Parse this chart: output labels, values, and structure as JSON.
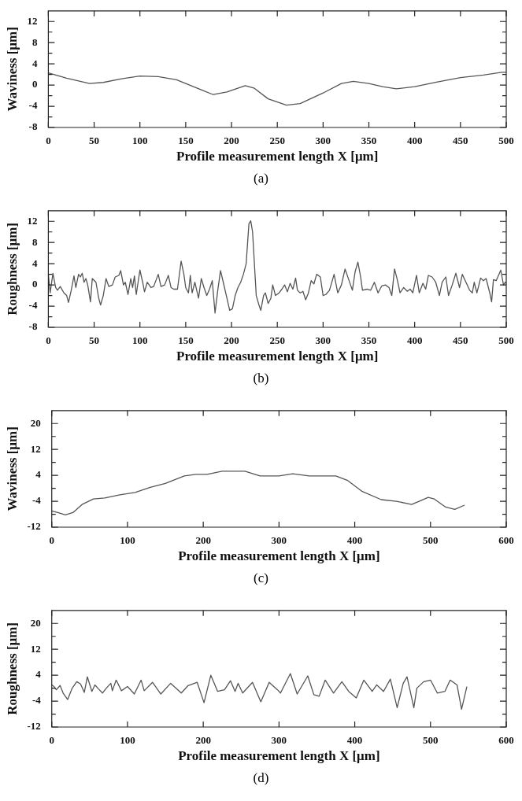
{
  "chart_data": [
    {
      "type": "line",
      "xlabel": "Profile measurement length X [μm]",
      "ylabel": "Waviness [μm]",
      "annotations": [
        "(a)"
      ],
      "color": "#555555",
      "marker": "none",
      "x": [
        0,
        20,
        45,
        60,
        80,
        100,
        120,
        140,
        160,
        180,
        195,
        215,
        225,
        240,
        260,
        275,
        300,
        320,
        333,
        350,
        365,
        380,
        400,
        425,
        450,
        475,
        495,
        500
      ],
      "values": [
        2.3,
        1.3,
        0.3,
        0.5,
        1.2,
        1.7,
        1.6,
        1.0,
        -0.4,
        -1.8,
        -1.3,
        -0.1,
        -0.6,
        -2.6,
        -3.8,
        -3.5,
        -1.5,
        0.3,
        0.7,
        0.3,
        -0.3,
        -0.7,
        -0.3,
        0.6,
        1.4,
        1.9,
        2.4,
        2.4
      ],
      "xlim": [
        0,
        500
      ],
      "xticks": [
        0,
        50,
        100,
        150,
        200,
        250,
        300,
        350,
        400,
        450,
        500
      ],
      "ylim": [
        -8,
        14
      ],
      "yticks": [
        -8,
        {
          "value": -6,
          "label": null
        },
        -4,
        {
          "value": -2,
          "label": null
        },
        0,
        {
          "value": 2,
          "label": null
        },
        4,
        {
          "value": 6,
          "label": null
        },
        8,
        {
          "value": 10,
          "label": null
        },
        12
      ]
    },
    {
      "type": "line",
      "xlabel": "Profile measurement length X [μm]",
      "ylabel": "Roughness [μm]",
      "annotations": [
        "(b)"
      ],
      "color": "#555555",
      "marker": "none",
      "x": [
        0,
        2,
        5,
        8,
        10,
        13,
        17,
        20,
        22,
        25,
        28,
        30,
        33,
        35,
        37,
        39,
        41,
        43,
        46,
        48,
        52,
        55,
        57,
        60,
        63,
        66,
        70,
        73,
        77,
        79,
        82,
        84,
        87,
        90,
        92,
        94,
        96,
        100,
        103,
        105,
        108,
        112,
        115,
        120,
        123,
        127,
        131,
        134,
        137,
        141,
        145,
        148,
        150,
        153,
        155,
        157,
        160,
        162,
        164,
        167,
        170,
        173,
        176,
        179,
        182,
        185,
        188,
        191,
        195,
        198,
        201,
        204,
        207,
        210,
        213,
        216,
        219,
        221,
        223,
        227,
        230,
        232,
        235,
        237,
        240,
        243,
        245,
        248,
        252,
        255,
        258,
        261,
        264,
        267,
        270,
        272,
        275,
        278,
        281,
        284,
        287,
        290,
        293,
        297,
        300,
        303,
        307,
        312,
        316,
        320,
        324,
        328,
        332,
        335,
        338,
        341,
        343,
        348,
        352,
        356,
        360,
        364,
        368,
        372,
        375,
        378,
        381,
        384,
        388,
        392,
        395,
        398,
        402,
        405,
        409,
        412,
        415,
        419,
        423,
        427,
        430,
        434,
        437,
        441,
        445,
        449,
        452,
        456,
        460,
        463,
        465,
        468,
        472,
        475,
        478,
        482,
        484,
        486,
        489,
        492,
        494,
        497,
        499,
        500
      ],
      "values": [
        2,
        -1.5,
        2.2,
        -0.5,
        -1,
        -0.3,
        -1.5,
        -2,
        -3.3,
        -1,
        1.7,
        -0.5,
        2,
        1.5,
        2.2,
        0.5,
        1.2,
        0,
        -3.2,
        1.2,
        0.5,
        -2.5,
        -3.8,
        -2,
        1.2,
        -0.3,
        0,
        1.5,
        1.8,
        2.7,
        0,
        0.5,
        -1.8,
        1.2,
        -0.5,
        1.7,
        -1.8,
        2.8,
        0.5,
        -1.3,
        0.5,
        -0.5,
        -0.3,
        2,
        -0.3,
        0,
        1.8,
        -0.5,
        -0.8,
        -0.8,
        4.5,
        2,
        -0.5,
        -1.5,
        1.8,
        -1.5,
        0.5,
        -1,
        -2.5,
        1.2,
        -0.5,
        -2,
        -0.8,
        0.8,
        -5.3,
        -1,
        2.7,
        0.5,
        -2.5,
        -4.8,
        -4.5,
        -2,
        -0.5,
        0.5,
        2,
        4,
        11.5,
        12.1,
        10,
        -2,
        -3.8,
        -4.8,
        -2,
        -1.5,
        -3.5,
        -2.5,
        0,
        -2,
        -1.5,
        -0.8,
        0,
        -1.3,
        0.3,
        -0.8,
        1.3,
        -1,
        -1.5,
        -1.2,
        -2.8,
        -1.5,
        0.8,
        0.2,
        2,
        1.5,
        -2,
        -1.8,
        -1,
        2,
        -1.5,
        0,
        3,
        1,
        -1,
        2.5,
        4.3,
        1.5,
        -1,
        -0.8,
        -1,
        0.5,
        -1.5,
        -0.2,
        0,
        -0.5,
        -2,
        3,
        1,
        -1.5,
        -0.5,
        -1.2,
        -0.8,
        -1.5,
        1.8,
        -1.5,
        0.3,
        -0.8,
        1.8,
        1.5,
        0.5,
        -2,
        0.5,
        1.5,
        -2,
        0,
        2.2,
        -0.5,
        2,
        0.5,
        -1,
        -1.5,
        0.5,
        -1.5,
        1.3,
        0.8,
        1.2,
        -1.5,
        -3.2,
        1,
        0.8,
        2,
        2.8,
        0,
        0.5,
        0.3
      ],
      "xlim": [
        0,
        500
      ],
      "xticks": [
        0,
        50,
        100,
        150,
        200,
        250,
        300,
        350,
        400,
        450,
        500
      ],
      "ylim": [
        -8,
        14
      ],
      "yticks": [
        -8,
        {
          "value": -6,
          "label": null
        },
        -4,
        {
          "value": -2,
          "label": null
        },
        0,
        {
          "value": 2,
          "label": null
        },
        4,
        {
          "value": 6,
          "label": null
        },
        8,
        {
          "value": 10,
          "label": null
        },
        12
      ]
    },
    {
      "type": "line",
      "xlabel": "Profile measurement length X [μm]",
      "ylabel": "Waviness [μm]",
      "annotations": [
        "(c)"
      ],
      "color": "#555555",
      "marker": "none",
      "x": [
        0,
        8,
        18,
        28,
        40,
        55,
        70,
        90,
        110,
        130,
        150,
        175,
        190,
        205,
        225,
        255,
        275,
        300,
        318,
        340,
        375,
        390,
        410,
        435,
        455,
        475,
        485,
        497,
        505,
        520,
        532,
        545
      ],
      "values": [
        -7,
        -7.5,
        -8.2,
        -7.5,
        -5,
        -3.3,
        -3,
        -2,
        -1.3,
        0.3,
        1.5,
        3.8,
        4.3,
        4.3,
        5.3,
        5.3,
        3.8,
        3.8,
        4.5,
        3.8,
        3.8,
        2.5,
        -1,
        -3.5,
        -4,
        -5,
        -4,
        -2.8,
        -3.3,
        -5.8,
        -6.5,
        -5.2
      ],
      "xlim": [
        0,
        600
      ],
      "xticks": [
        0,
        100,
        200,
        300,
        400,
        500,
        600
      ],
      "ylim": [
        -12,
        24
      ],
      "yticks": [
        -12,
        {
          "value": -8,
          "label": null
        },
        -4,
        {
          "value": 0,
          "label": null
        },
        4,
        {
          "value": 8,
          "label": null
        },
        12,
        {
          "value": 16,
          "label": null
        },
        20
      ]
    },
    {
      "type": "line",
      "xlabel": "Profile measurement length X [μm]",
      "ylabel": "Roughness [μm]",
      "annotations": [
        "(d)"
      ],
      "color": "#555555",
      "marker": "none",
      "x": [
        0,
        3,
        6,
        11,
        15,
        21,
        27,
        33,
        38,
        43,
        47,
        53,
        57,
        62,
        67,
        72,
        78,
        80,
        85,
        92,
        100,
        109,
        118,
        122,
        133,
        144,
        157,
        171,
        180,
        192,
        201,
        210,
        219,
        228,
        236,
        242,
        246,
        252,
        265,
        276,
        287,
        298,
        302,
        315,
        324,
        338,
        346,
        353,
        361,
        372,
        383,
        392,
        402,
        412,
        423,
        429,
        438,
        447,
        456,
        464,
        469,
        478,
        482,
        491,
        500,
        509,
        519,
        526,
        535,
        541,
        548
      ],
      "values": [
        1,
        0.5,
        -0.5,
        0.8,
        -1.5,
        -3.5,
        0,
        2,
        1.3,
        -1.3,
        3.5,
        -1,
        1,
        -0.3,
        -1.5,
        0,
        1.5,
        -0.8,
        2.5,
        -0.8,
        0.5,
        -1.8,
        2.5,
        -0.8,
        1.8,
        -1.8,
        1.5,
        -1.5,
        0.8,
        1.8,
        -4.5,
        4,
        -1,
        -0.5,
        2.3,
        -1,
        1.5,
        -1.5,
        1.8,
        -4.2,
        1.8,
        -0.5,
        -1.5,
        4.5,
        -1.8,
        3.8,
        -2,
        -2.5,
        2.5,
        -1.5,
        2,
        -1,
        -3,
        2.5,
        -1,
        1,
        -1,
        2.8,
        -6,
        1.5,
        3.5,
        -6,
        0,
        2,
        2.5,
        -1.5,
        -1,
        2.5,
        1,
        -6.5,
        0.5
      ],
      "xlim": [
        0,
        600
      ],
      "xticks": [
        0,
        100,
        200,
        300,
        400,
        500,
        600
      ],
      "ylim": [
        -12,
        24
      ],
      "yticks": [
        -12,
        {
          "value": -8,
          "label": null
        },
        -4,
        {
          "value": 0,
          "label": null
        },
        4,
        {
          "value": 8,
          "label": null
        },
        12,
        {
          "value": 16,
          "label": null
        },
        20
      ]
    }
  ]
}
